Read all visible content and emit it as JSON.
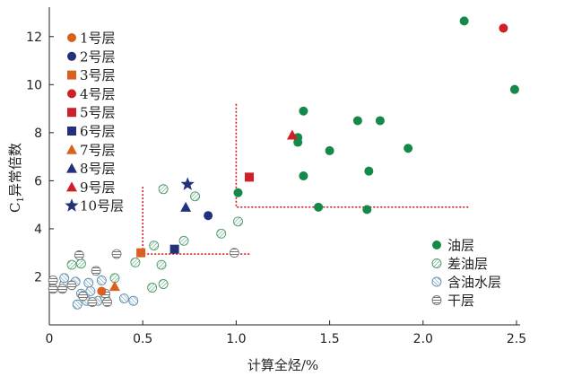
{
  "chart_data": {
    "type": "scatter",
    "xlabel": "计算全烃/%",
    "ylabel_main": "C",
    "ylabel_sub": "1",
    "ylabel_rest": "异常倍数",
    "xlim": [
      0,
      2.5
    ],
    "ylim": [
      0,
      13
    ],
    "xticks": [
      "0",
      "0.5",
      "1.0",
      "1.5",
      "2.0",
      "2.5"
    ],
    "yticks": [
      "2",
      "4",
      "6",
      "8",
      "10",
      "12"
    ],
    "grid": false,
    "legend_layers_placement": "top-left",
    "legend_types_placement": "bottom-right",
    "layer_legend": [
      {
        "label": "1号层",
        "shape": "circle",
        "color": "#d9601f"
      },
      {
        "label": "2号层",
        "shape": "circle",
        "color": "#23307a"
      },
      {
        "label": "3号层",
        "shape": "square",
        "color": "#d9601f"
      },
      {
        "label": "4号层",
        "shape": "circle",
        "color": "#cf2027"
      },
      {
        "label": "5号层",
        "shape": "square",
        "color": "#cf2027"
      },
      {
        "label": "6号层",
        "shape": "square",
        "color": "#23307a"
      },
      {
        "label": "7号层",
        "shape": "triangle",
        "color": "#d9601f"
      },
      {
        "label": "8号层",
        "shape": "triangle",
        "color": "#23307a"
      },
      {
        "label": "9号层",
        "shape": "triangle",
        "color": "#cf2027"
      },
      {
        "label": "10号层",
        "shape": "star",
        "color": "#23307a"
      }
    ],
    "type_legend": [
      {
        "label": "油层",
        "style": "oil",
        "color": "#14894a"
      },
      {
        "label": "差油层",
        "style": "poor",
        "color": "#4a9a6a"
      },
      {
        "label": "含油水层",
        "style": "water",
        "color": "#5a8fb0"
      },
      {
        "label": "干层",
        "style": "dry",
        "color": "#777777"
      }
    ],
    "threshold_lines": {
      "color": "#cc2020",
      "lower_box": {
        "x": [
          0.5,
          1.08
        ],
        "y": [
          2.95,
          5.75
        ]
      },
      "upper_box": {
        "x": [
          1.0,
          2.25
        ],
        "y": [
          4.9,
          9.2
        ]
      }
    },
    "series": [
      {
        "name": "油层",
        "style": "oil",
        "points": [
          [
            2.22,
            12.65
          ],
          [
            2.49,
            9.8
          ],
          [
            1.36,
            8.9
          ],
          [
            1.65,
            8.5
          ],
          [
            1.77,
            8.5
          ],
          [
            1.33,
            7.8
          ],
          [
            1.33,
            7.6
          ],
          [
            1.5,
            7.25
          ],
          [
            1.92,
            7.35
          ],
          [
            1.36,
            6.2
          ],
          [
            1.71,
            6.4
          ],
          [
            1.01,
            5.5
          ],
          [
            1.44,
            4.9
          ],
          [
            1.7,
            4.8
          ]
        ]
      },
      {
        "name": "差油层",
        "style": "poor",
        "points": [
          [
            0.61,
            5.65
          ],
          [
            0.78,
            5.35
          ],
          [
            0.56,
            3.3
          ],
          [
            0.72,
            3.5
          ],
          [
            0.92,
            3.8
          ],
          [
            1.01,
            4.3
          ],
          [
            0.6,
            2.5
          ],
          [
            0.46,
            2.6
          ],
          [
            0.12,
            2.5
          ],
          [
            0.17,
            2.55
          ],
          [
            0.55,
            1.55
          ],
          [
            0.61,
            1.7
          ],
          [
            0.35,
            1.95
          ],
          [
            0.08,
            1.7
          ]
        ]
      },
      {
        "name": "含油水层",
        "style": "water",
        "points": [
          [
            0.08,
            1.95
          ],
          [
            0.14,
            1.8
          ],
          [
            0.21,
            1.75
          ],
          [
            0.28,
            1.85
          ],
          [
            0.17,
            1.3
          ],
          [
            0.22,
            1.4
          ],
          [
            0.26,
            1.0
          ],
          [
            0.3,
            1.1
          ],
          [
            0.15,
            0.85
          ],
          [
            0.2,
            1.0
          ],
          [
            0.4,
            1.1
          ],
          [
            0.45,
            1.0
          ]
        ]
      },
      {
        "name": "干层",
        "style": "dry",
        "points": [
          [
            0.16,
            2.9
          ],
          [
            0.36,
            2.95
          ],
          [
            0.25,
            2.25
          ],
          [
            0.07,
            1.5
          ],
          [
            0.02,
            1.5
          ],
          [
            0.02,
            1.85
          ],
          [
            0.12,
            1.65
          ],
          [
            0.18,
            1.2
          ],
          [
            0.23,
            0.95
          ],
          [
            0.3,
            1.3
          ],
          [
            0.31,
            0.95
          ],
          [
            0.99,
            3.0
          ]
        ]
      },
      {
        "name": "1号层",
        "style": "layer",
        "shape": "circle",
        "color": "#d9601f",
        "points": [
          [
            0.28,
            1.4
          ]
        ]
      },
      {
        "name": "2号层",
        "style": "layer",
        "shape": "circle",
        "color": "#23307a",
        "points": [
          [
            0.85,
            4.55
          ]
        ]
      },
      {
        "name": "3号层",
        "style": "layer",
        "shape": "square",
        "color": "#d9601f",
        "points": [
          [
            0.49,
            3.0
          ]
        ]
      },
      {
        "name": "4号层",
        "style": "layer",
        "shape": "circle",
        "color": "#cf2027",
        "points": [
          [
            2.43,
            12.35
          ]
        ]
      },
      {
        "name": "5号层",
        "style": "layer",
        "shape": "square",
        "color": "#cf2027",
        "points": [
          [
            1.07,
            6.15
          ]
        ]
      },
      {
        "name": "6号层",
        "style": "layer",
        "shape": "square",
        "color": "#23307a",
        "points": [
          [
            0.67,
            3.15
          ]
        ]
      },
      {
        "name": "7号层",
        "style": "layer",
        "shape": "triangle",
        "color": "#d9601f",
        "points": [
          [
            0.35,
            1.6
          ]
        ]
      },
      {
        "name": "8号层",
        "style": "layer",
        "shape": "triangle",
        "color": "#23307a",
        "points": [
          [
            0.73,
            4.9
          ]
        ]
      },
      {
        "name": "9号层",
        "style": "layer",
        "shape": "triangle",
        "color": "#cf2027",
        "points": [
          [
            1.3,
            7.9
          ]
        ]
      },
      {
        "name": "10号层",
        "style": "layer",
        "shape": "star",
        "color": "#23307a",
        "points": [
          [
            0.74,
            5.85
          ]
        ]
      }
    ]
  }
}
